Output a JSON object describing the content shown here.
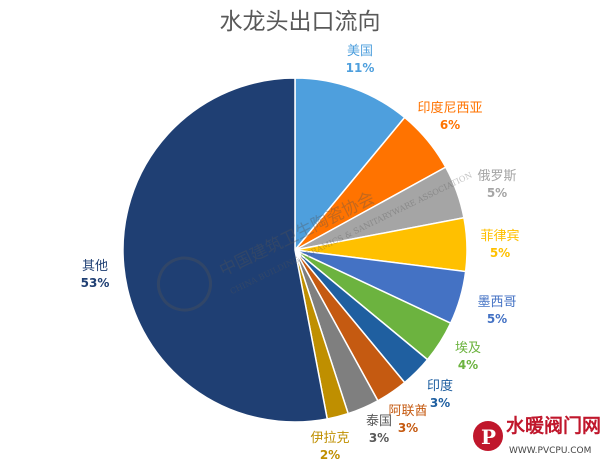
{
  "chart_data": {
    "type": "pie",
    "title": "水龙头出口流向",
    "slices": [
      {
        "label": "美国",
        "value": 11,
        "display": "11%",
        "color": "#4e9fdd"
      },
      {
        "label": "印度尼西亚",
        "value": 6,
        "display": "6%",
        "color": "#ff7300"
      },
      {
        "label": "俄罗斯",
        "value": 5,
        "display": "5%",
        "color": "#a5a5a5"
      },
      {
        "label": "菲律宾",
        "value": 5,
        "display": "5%",
        "color": "#ffc000"
      },
      {
        "label": "墨西哥",
        "value": 5,
        "display": "5%",
        "color": "#4472c4"
      },
      {
        "label": "埃及",
        "value": 4,
        "display": "4%",
        "color": "#6cb33f"
      },
      {
        "label": "印度",
        "value": 3,
        "display": "3%",
        "color": "#1f5fa0"
      },
      {
        "label": "阿联酋",
        "value": 3,
        "display": "3%",
        "color": "#c55a11"
      },
      {
        "label": "泰国",
        "value": 3,
        "display": "3%",
        "color": "#7f7f7f"
      },
      {
        "label": "伊拉克",
        "value": 2,
        "display": "2%",
        "color": "#bf8f00"
      },
      {
        "label": "其他",
        "value": 53,
        "display": "53%",
        "color": "#1f3f73"
      }
    ],
    "label_colors": [
      "#4e9fdd",
      "#ff7300",
      "#a5a5a5",
      "#ffc000",
      "#4472c4",
      "#6cb33f",
      "#1f5fa0",
      "#c55a11",
      "#595959",
      "#bf8f00",
      "#1f3f73"
    ]
  },
  "watermark": {
    "text": "中国建筑卫生陶瓷协会",
    "subtext": "CHINA BUILDING CERAMICS & SANITARYWARE ASSOCIATION"
  },
  "logo": {
    "text": "水暖阀门网",
    "url": "WWW.PVCPU.COM"
  }
}
